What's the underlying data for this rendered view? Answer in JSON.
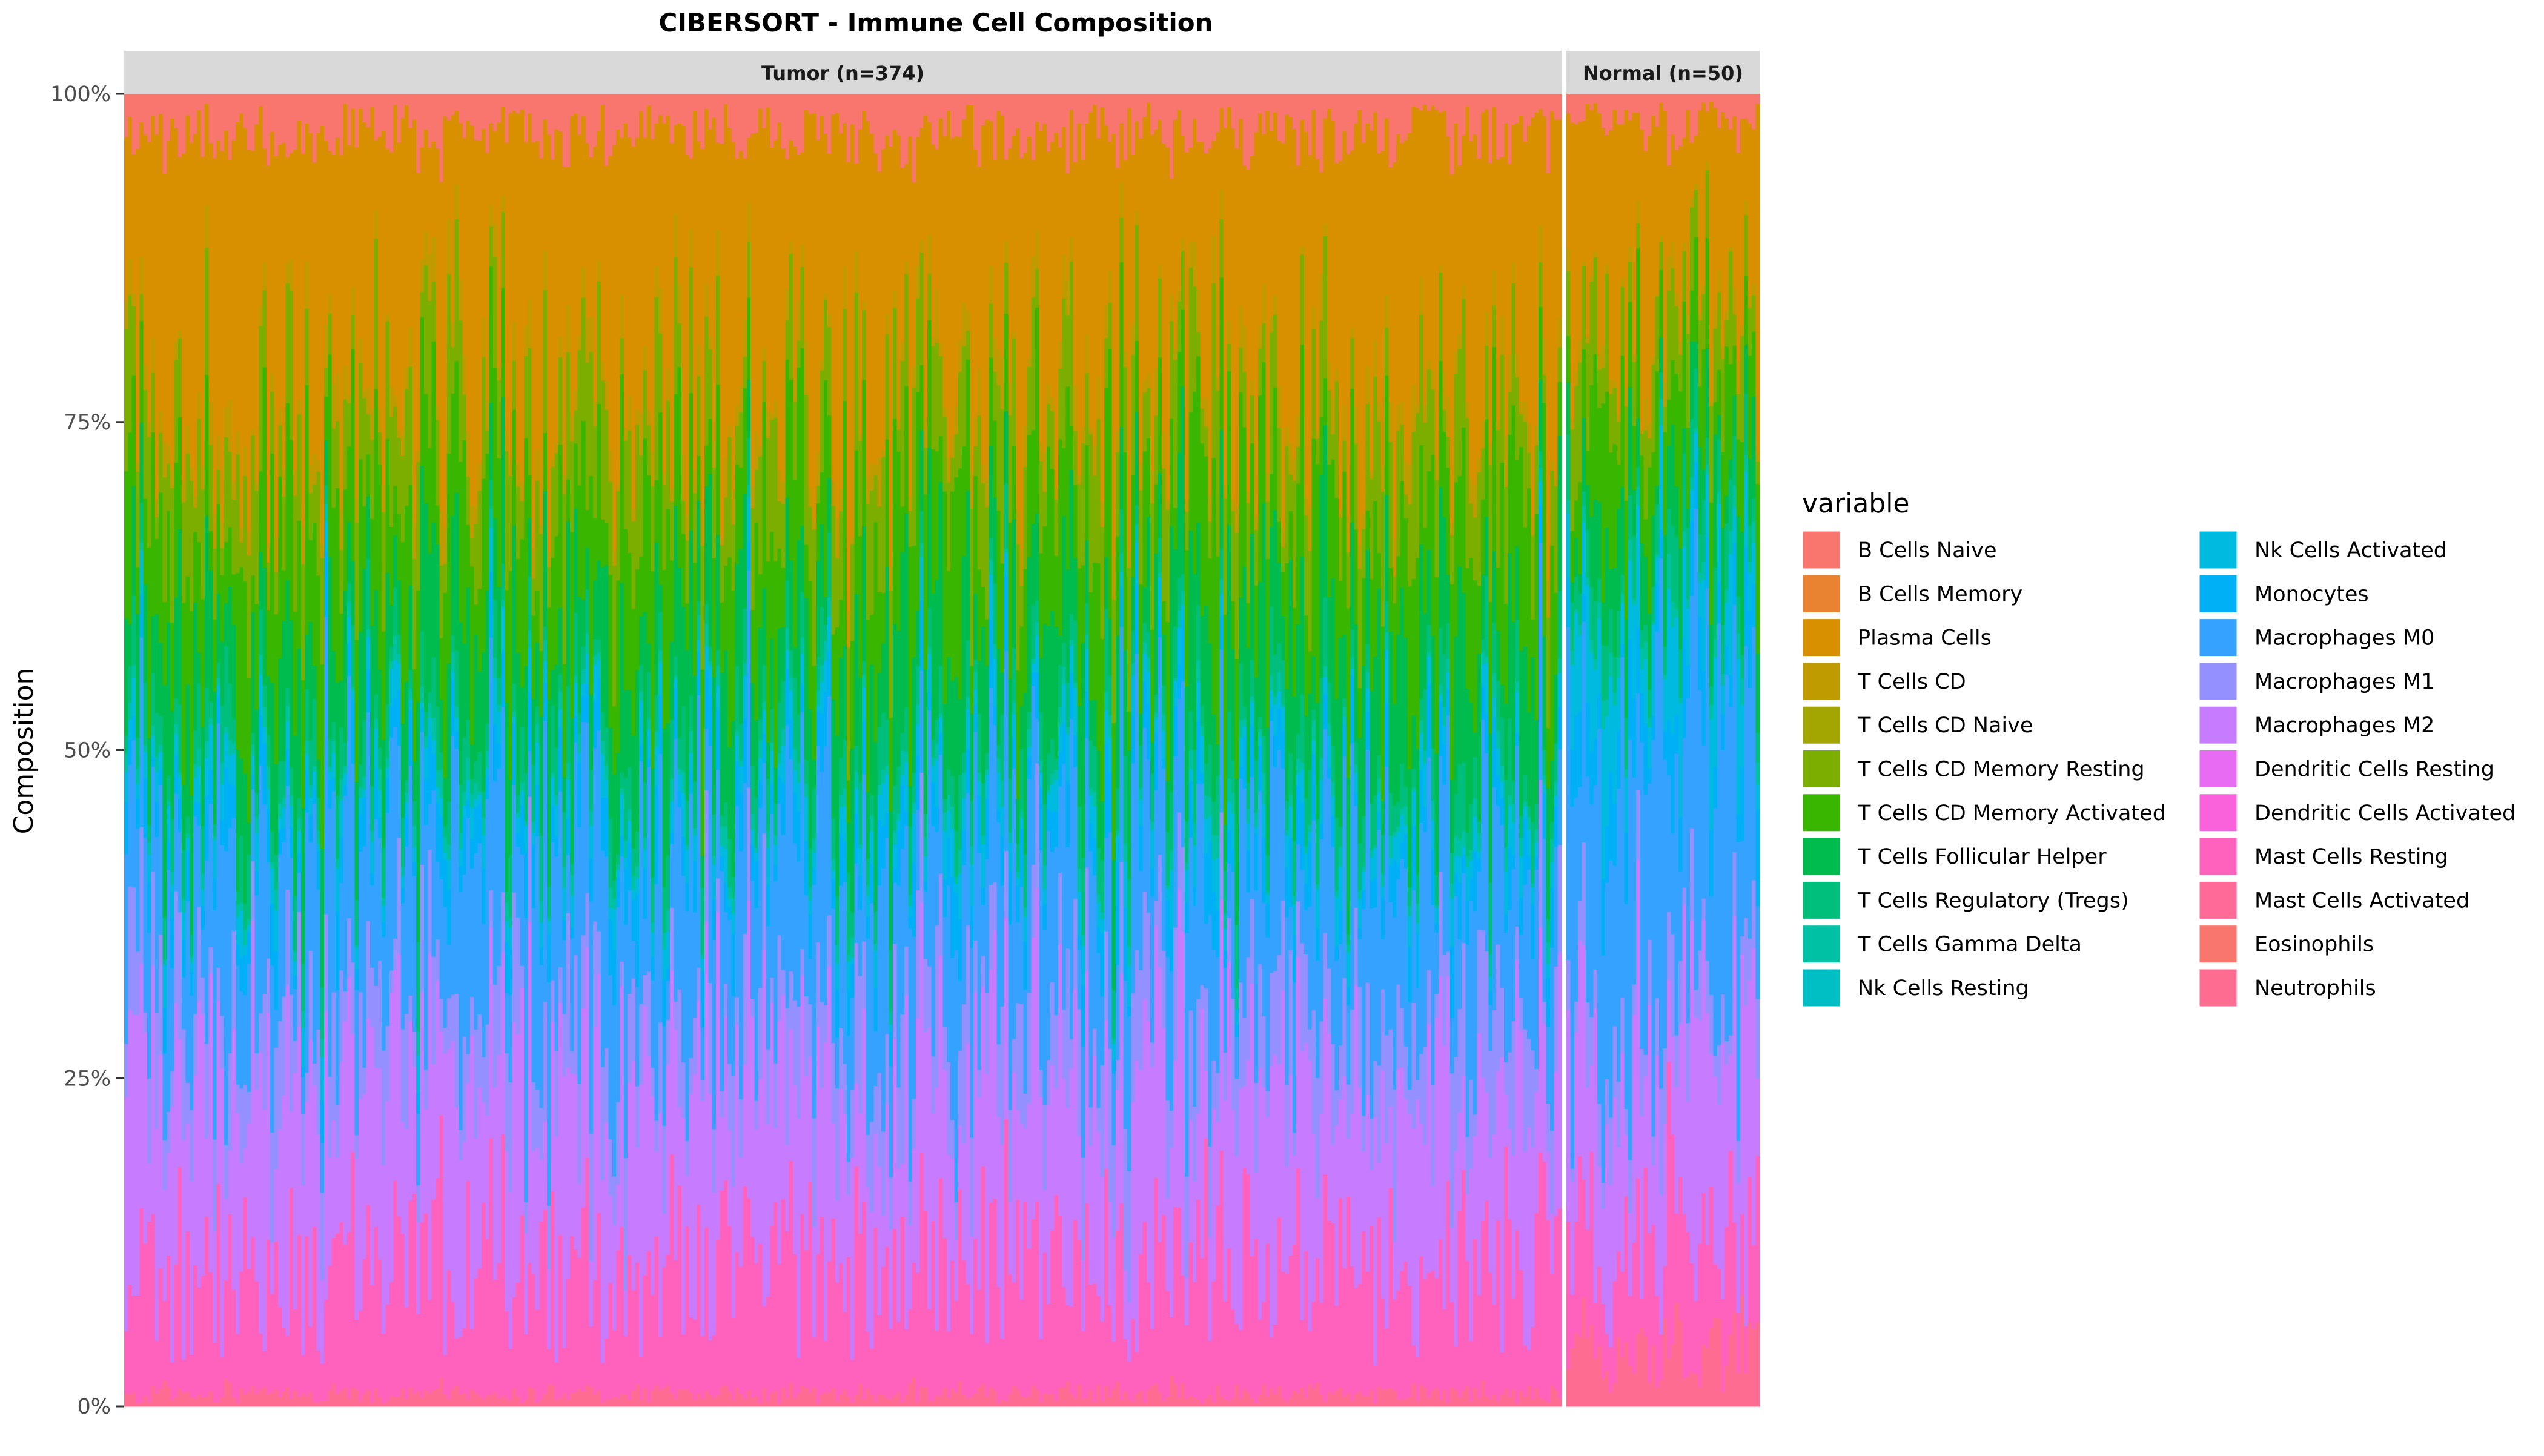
{
  "chart_data": {
    "type": "bar",
    "stacked": true,
    "normalized": true,
    "title": "CIBERSORT - Immune Cell Composition",
    "xlabel": "",
    "ylabel": "Composition",
    "ylim": [
      0,
      1
    ],
    "y_ticks": [
      "0%",
      "25%",
      "50%",
      "75%",
      "100%"
    ],
    "grid": false,
    "legend": {
      "title": "variable",
      "position": "right",
      "columns": 2
    },
    "panels": [
      {
        "label": "Tumor (n=374)",
        "n_samples": 374
      },
      {
        "label": "Normal (n=50)",
        "n_samples": 50
      }
    ],
    "series": [
      {
        "name": "B Cells Naive",
        "color": "#F8766D"
      },
      {
        "name": "B Cells Memory",
        "color": "#EA8331"
      },
      {
        "name": "Plasma Cells",
        "color": "#D89000"
      },
      {
        "name": "T Cells CD",
        "color": "#C09B00"
      },
      {
        "name": "T Cells CD Naive",
        "color": "#A3A500"
      },
      {
        "name": "T Cells CD Memory Resting",
        "color": "#7CAE00"
      },
      {
        "name": "T Cells CD Memory Activated",
        "color": "#39B600"
      },
      {
        "name": "T Cells Follicular Helper",
        "color": "#00BB4E"
      },
      {
        "name": "T Cells Regulatory (Tregs)",
        "color": "#00BF7D"
      },
      {
        "name": "T Cells Gamma Delta",
        "color": "#00C1A3"
      },
      {
        "name": "Nk Cells Resting",
        "color": "#00BFC4"
      },
      {
        "name": "Nk Cells Activated",
        "color": "#00BAE0"
      },
      {
        "name": "Monocytes",
        "color": "#00B0F6"
      },
      {
        "name": "Macrophages M0",
        "color": "#35A2FF"
      },
      {
        "name": "Macrophages M1",
        "color": "#9590FF"
      },
      {
        "name": "Macrophages M2",
        "color": "#C77CFF"
      },
      {
        "name": "Dendritic Cells Resting",
        "color": "#E76BF3"
      },
      {
        "name": "Dendritic Cells Activated",
        "color": "#FA62DB"
      },
      {
        "name": "Mast Cells Resting",
        "color": "#FF62BC"
      },
      {
        "name": "Mast Cells Activated",
        "color": "#FF6A98"
      },
      {
        "name": "Eosinophils",
        "color": "#F8766D"
      },
      {
        "name": "Neutrophils",
        "color": "#FF6C91"
      }
    ],
    "mean_composition": {
      "Tumor (n=374)": [
        0.03,
        0.0,
        0.2,
        0.02,
        0.0,
        0.07,
        0.1,
        0.08,
        0.03,
        0.01,
        0.0,
        0.02,
        0.03,
        0.12,
        0.06,
        0.14,
        0.0,
        0.0,
        0.1,
        0.0,
        0.0,
        0.01
      ],
      "Normal (n=50)": [
        0.02,
        0.0,
        0.14,
        0.01,
        0.0,
        0.05,
        0.07,
        0.05,
        0.03,
        0.01,
        0.0,
        0.05,
        0.04,
        0.22,
        0.04,
        0.14,
        0.0,
        0.0,
        0.08,
        0.0,
        0.0,
        0.04
      ]
    }
  }
}
